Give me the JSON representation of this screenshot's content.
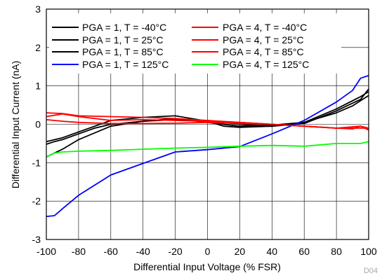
{
  "chart_data": {
    "type": "line",
    "xlabel": "Differential Input Voltage (% FSR)",
    "ylabel": "Differential Input Current (nA)",
    "xlim": [
      -100,
      100
    ],
    "ylim": [
      -3,
      3
    ],
    "xticks": [
      -100,
      -80,
      -60,
      -40,
      -20,
      0,
      20,
      40,
      60,
      80,
      100
    ],
    "yticks": [
      -3,
      -2,
      -1,
      0,
      1,
      2,
      3
    ],
    "grid": true,
    "legend_position": "top-left",
    "figure_code": "D04",
    "series": [
      {
        "name": "PGA = 1, T = -40°C",
        "color": "#000000",
        "x": [
          -100,
          -95,
          -90,
          -80,
          -70,
          -60,
          -40,
          -20,
          0,
          20,
          40,
          60,
          80,
          90,
          100
        ],
        "y": [
          -0.52,
          -0.45,
          -0.4,
          -0.25,
          -0.1,
          0.0,
          0.08,
          0.12,
          0.1,
          0.0,
          -0.05,
          0.05,
          0.3,
          0.48,
          0.75
        ]
      },
      {
        "name": "PGA = 1, T = 25°C",
        "color": "#000000",
        "x": [
          -100,
          -90,
          -80,
          -60,
          -40,
          -20,
          0,
          10,
          20,
          40,
          60,
          80,
          95,
          100
        ],
        "y": [
          -0.45,
          -0.35,
          -0.2,
          0.1,
          0.18,
          0.22,
          0.08,
          -0.05,
          -0.08,
          -0.05,
          0.02,
          0.35,
          0.65,
          0.92
        ]
      },
      {
        "name": "PGA = 1, T = 85°C",
        "color": "#000000",
        "x": [
          -100,
          -90,
          -80,
          -60,
          -40,
          -20,
          0,
          20,
          40,
          60,
          80,
          95,
          100
        ],
        "y": [
          -0.85,
          -0.65,
          -0.4,
          -0.05,
          0.08,
          0.15,
          0.05,
          -0.05,
          -0.02,
          0.05,
          0.4,
          0.72,
          0.85
        ]
      },
      {
        "name": "PGA = 1, T = 125°C",
        "color": "#0000ff",
        "x": [
          -100,
          -95,
          -90,
          -80,
          -60,
          -40,
          -20,
          0,
          20,
          40,
          60,
          80,
          90,
          95,
          100
        ],
        "y": [
          -2.4,
          -2.38,
          -2.2,
          -1.85,
          -1.32,
          -1.02,
          -0.72,
          -0.66,
          -0.58,
          -0.25,
          0.1,
          0.58,
          0.88,
          1.2,
          1.27
        ]
      },
      {
        "name": "PGA = 4, T = -40°C",
        "color": "#ff0000",
        "x": [
          -100,
          -90,
          -80,
          -60,
          -40,
          -20,
          0,
          20,
          40,
          60,
          80,
          90,
          95,
          100
        ],
        "y": [
          0.3,
          0.28,
          0.22,
          0.2,
          0.18,
          0.15,
          0.1,
          0.05,
          0.0,
          -0.05,
          -0.1,
          -0.12,
          -0.05,
          -0.15
        ]
      },
      {
        "name": "PGA = 4, T = 25°C",
        "color": "#ff0000",
        "x": [
          -100,
          -90,
          -80,
          -60,
          -40,
          -20,
          0,
          20,
          40,
          60,
          80,
          95,
          100
        ],
        "y": [
          0.2,
          0.27,
          0.2,
          0.1,
          0.12,
          0.1,
          0.08,
          0.05,
          0.0,
          -0.05,
          -0.1,
          -0.05,
          -0.1
        ]
      },
      {
        "name": "PGA = 4, T = 85°C",
        "color": "#ff0000",
        "x": [
          -100,
          -95,
          -90,
          -80,
          -60,
          -40,
          -20,
          0,
          20,
          40,
          60,
          80,
          90,
          100
        ],
        "y": [
          0.12,
          0.1,
          0.08,
          0.05,
          0.02,
          0.02,
          0.03,
          0.05,
          0.02,
          0.0,
          -0.05,
          -0.1,
          -0.1,
          -0.1
        ]
      },
      {
        "name": "PGA = 4, T = 125°C",
        "color": "#00ff00",
        "x": [
          -100,
          -95,
          -90,
          -80,
          -60,
          -40,
          -20,
          0,
          20,
          40,
          60,
          80,
          95,
          100
        ],
        "y": [
          -0.85,
          -0.75,
          -0.72,
          -0.7,
          -0.68,
          -0.65,
          -0.62,
          -0.6,
          -0.57,
          -0.55,
          -0.57,
          -0.5,
          -0.5,
          -0.45
        ]
      }
    ]
  }
}
